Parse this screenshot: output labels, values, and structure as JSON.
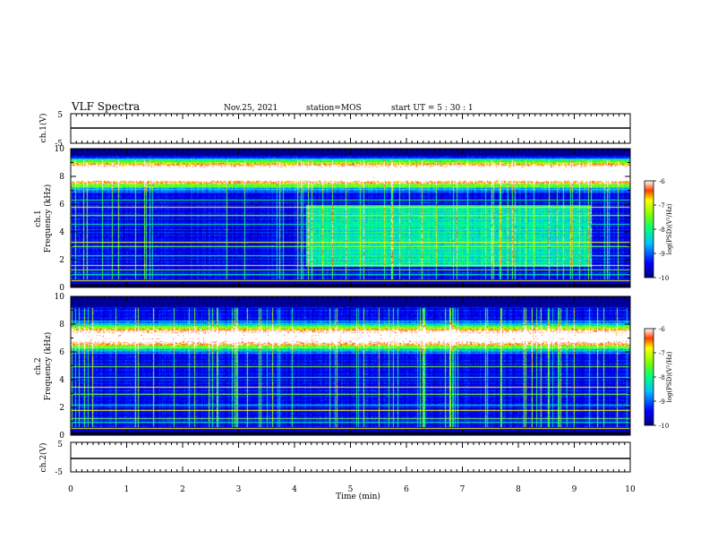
{
  "header": {
    "title": "VLF Spectra",
    "date": "Nov.25, 2021",
    "station": "station=MOS",
    "start": "start UT =  5 : 30 : 1"
  },
  "chart_data": [
    {
      "type": "line",
      "panel": "ch1-waveform",
      "ylabel": "ch.1(V)",
      "yticks": [
        "5",
        "-5"
      ],
      "ylim": [
        -5,
        5
      ],
      "xlim": [
        0,
        10
      ],
      "series": [
        {
          "x": [
            0,
            10
          ],
          "values": [
            0,
            0
          ]
        }
      ]
    },
    {
      "type": "heatmap",
      "panel": "ch1-spectrogram",
      "ylabel": "ch.1\nFrequency (kHz)",
      "ylabel_top": "ch.1",
      "ylabel_bottom": "Frequency (kHz)",
      "yticks": [
        "0",
        "2",
        "4",
        "6",
        "8",
        "10"
      ],
      "ylim": [
        0,
        10
      ],
      "xlim": [
        0,
        10
      ],
      "colorbar": {
        "label": "log(PSD)(V²/Hz)",
        "ticks": [
          "-6",
          "-7",
          "-8",
          "-9",
          "-10"
        ],
        "range": [
          -10,
          -6
        ]
      },
      "bands_khz": [
        7.8,
        8.1,
        8.4,
        8.6
      ],
      "lines_khz": [
        0.5,
        1.0,
        1.3,
        1.6,
        2.3,
        3.0,
        3.3,
        4.6,
        5.2,
        5.8,
        6.3
      ],
      "hiss": {
        "t_start_min": 4.2,
        "t_end_min": 9.3,
        "f_low_khz": 1.5,
        "f_high_khz": 6.0
      }
    },
    {
      "type": "heatmap",
      "panel": "ch2-spectrogram",
      "ylabel": "ch.2\nFrequency (kHz)",
      "ylabel_top": "ch.2",
      "ylabel_bottom": "Frequency (kHz)",
      "yticks": [
        "0",
        "2",
        "4",
        "6",
        "8",
        "10"
      ],
      "ylim": [
        0,
        10
      ],
      "xlim": [
        0,
        10
      ],
      "colorbar": {
        "label": "log(PSD)(V²/Hz)",
        "ticks": [
          "-6",
          "-7",
          "-8",
          "-9",
          "-10"
        ],
        "range": [
          -10,
          -6
        ]
      },
      "bands_khz": [
        6.8,
        7.1,
        7.4
      ],
      "lines_khz": [
        0.5,
        1.0,
        1.2,
        1.8,
        2.2,
        3.0,
        3.5,
        4.2,
        5.0
      ]
    },
    {
      "type": "line",
      "panel": "ch2-waveform",
      "ylabel": "ch.2(V)",
      "yticks": [
        "5",
        "-5"
      ],
      "ylim": [
        -5,
        5
      ],
      "xlim": [
        0,
        10
      ],
      "xlabel": "Time (min)",
      "xticks": [
        "0",
        "1",
        "2",
        "3",
        "4",
        "5",
        "6",
        "7",
        "8",
        "9",
        "10"
      ],
      "series": [
        {
          "x": [
            0,
            10
          ],
          "values": [
            0,
            0
          ]
        }
      ]
    }
  ]
}
